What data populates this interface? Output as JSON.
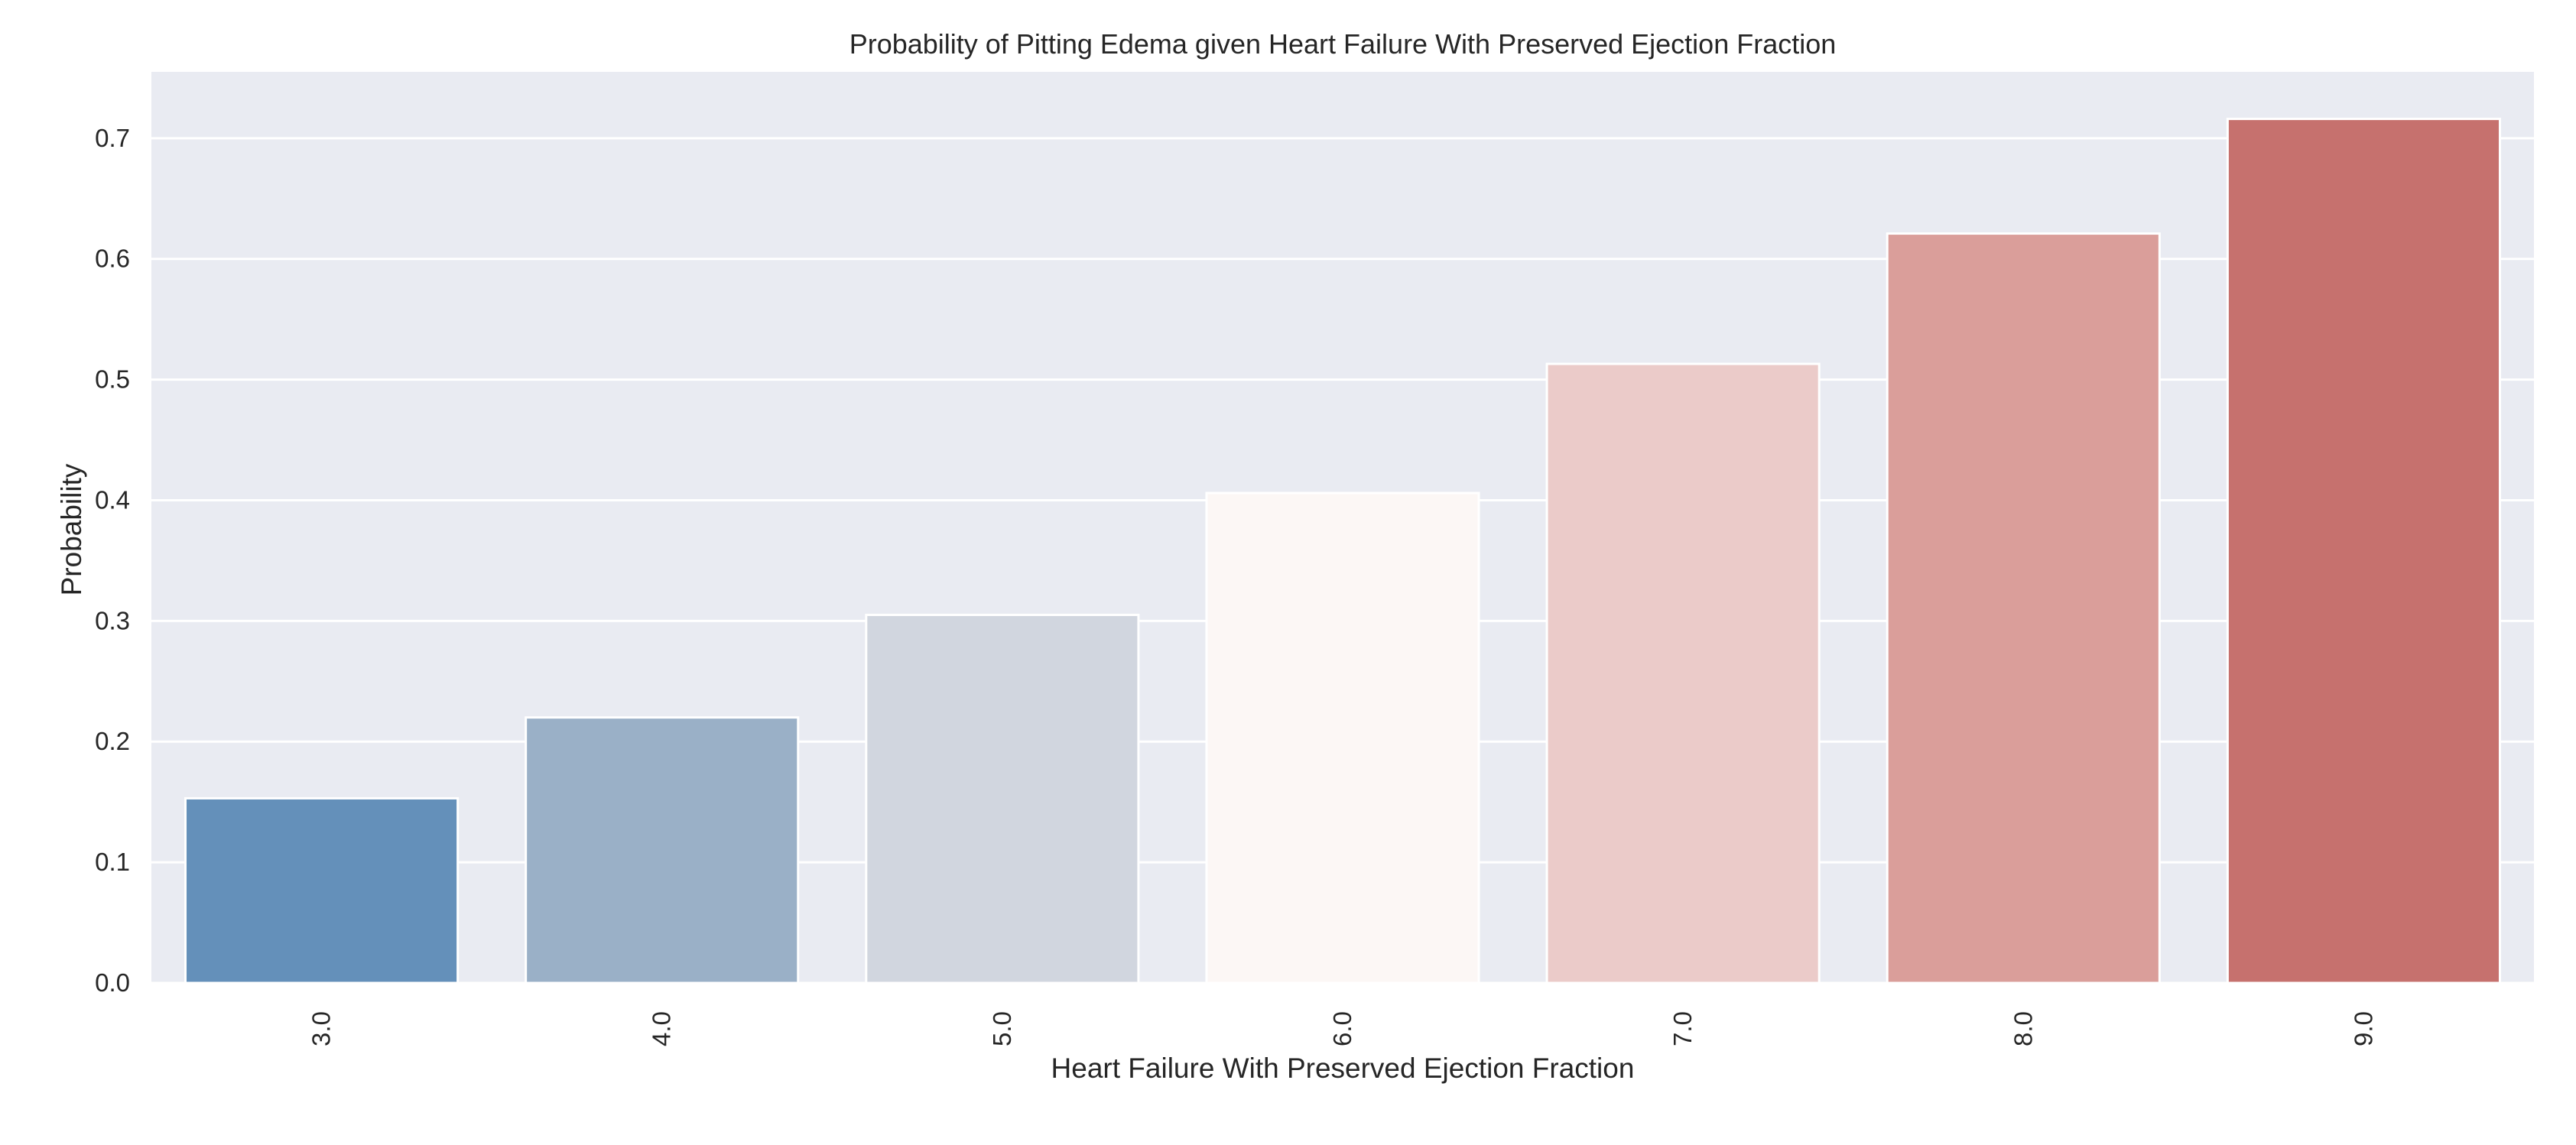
{
  "chart_data": {
    "type": "bar",
    "title": "Probability of Pitting Edema given Heart Failure With Preserved Ejection Fraction",
    "xlabel": "Heart Failure With Preserved Ejection Fraction",
    "ylabel": "Probability",
    "categories": [
      "3.0",
      "4.0",
      "5.0",
      "6.0",
      "7.0",
      "8.0",
      "9.0"
    ],
    "values": [
      0.153,
      0.22,
      0.305,
      0.406,
      0.513,
      0.621,
      0.716
    ],
    "colors": [
      "#6490ba",
      "#9ab0c7",
      "#d1d6df",
      "#fcf7f5",
      "#ebcbc9",
      "#da9e9a",
      "#c6716e"
    ],
    "ylim": [
      0,
      0.755
    ],
    "yticks": [
      "0.0",
      "0.1",
      "0.2",
      "0.3",
      "0.4",
      "0.5",
      "0.6",
      "0.7"
    ],
    "grid": true,
    "background": "#e9ebf2",
    "grid_color": "#ffffff"
  }
}
